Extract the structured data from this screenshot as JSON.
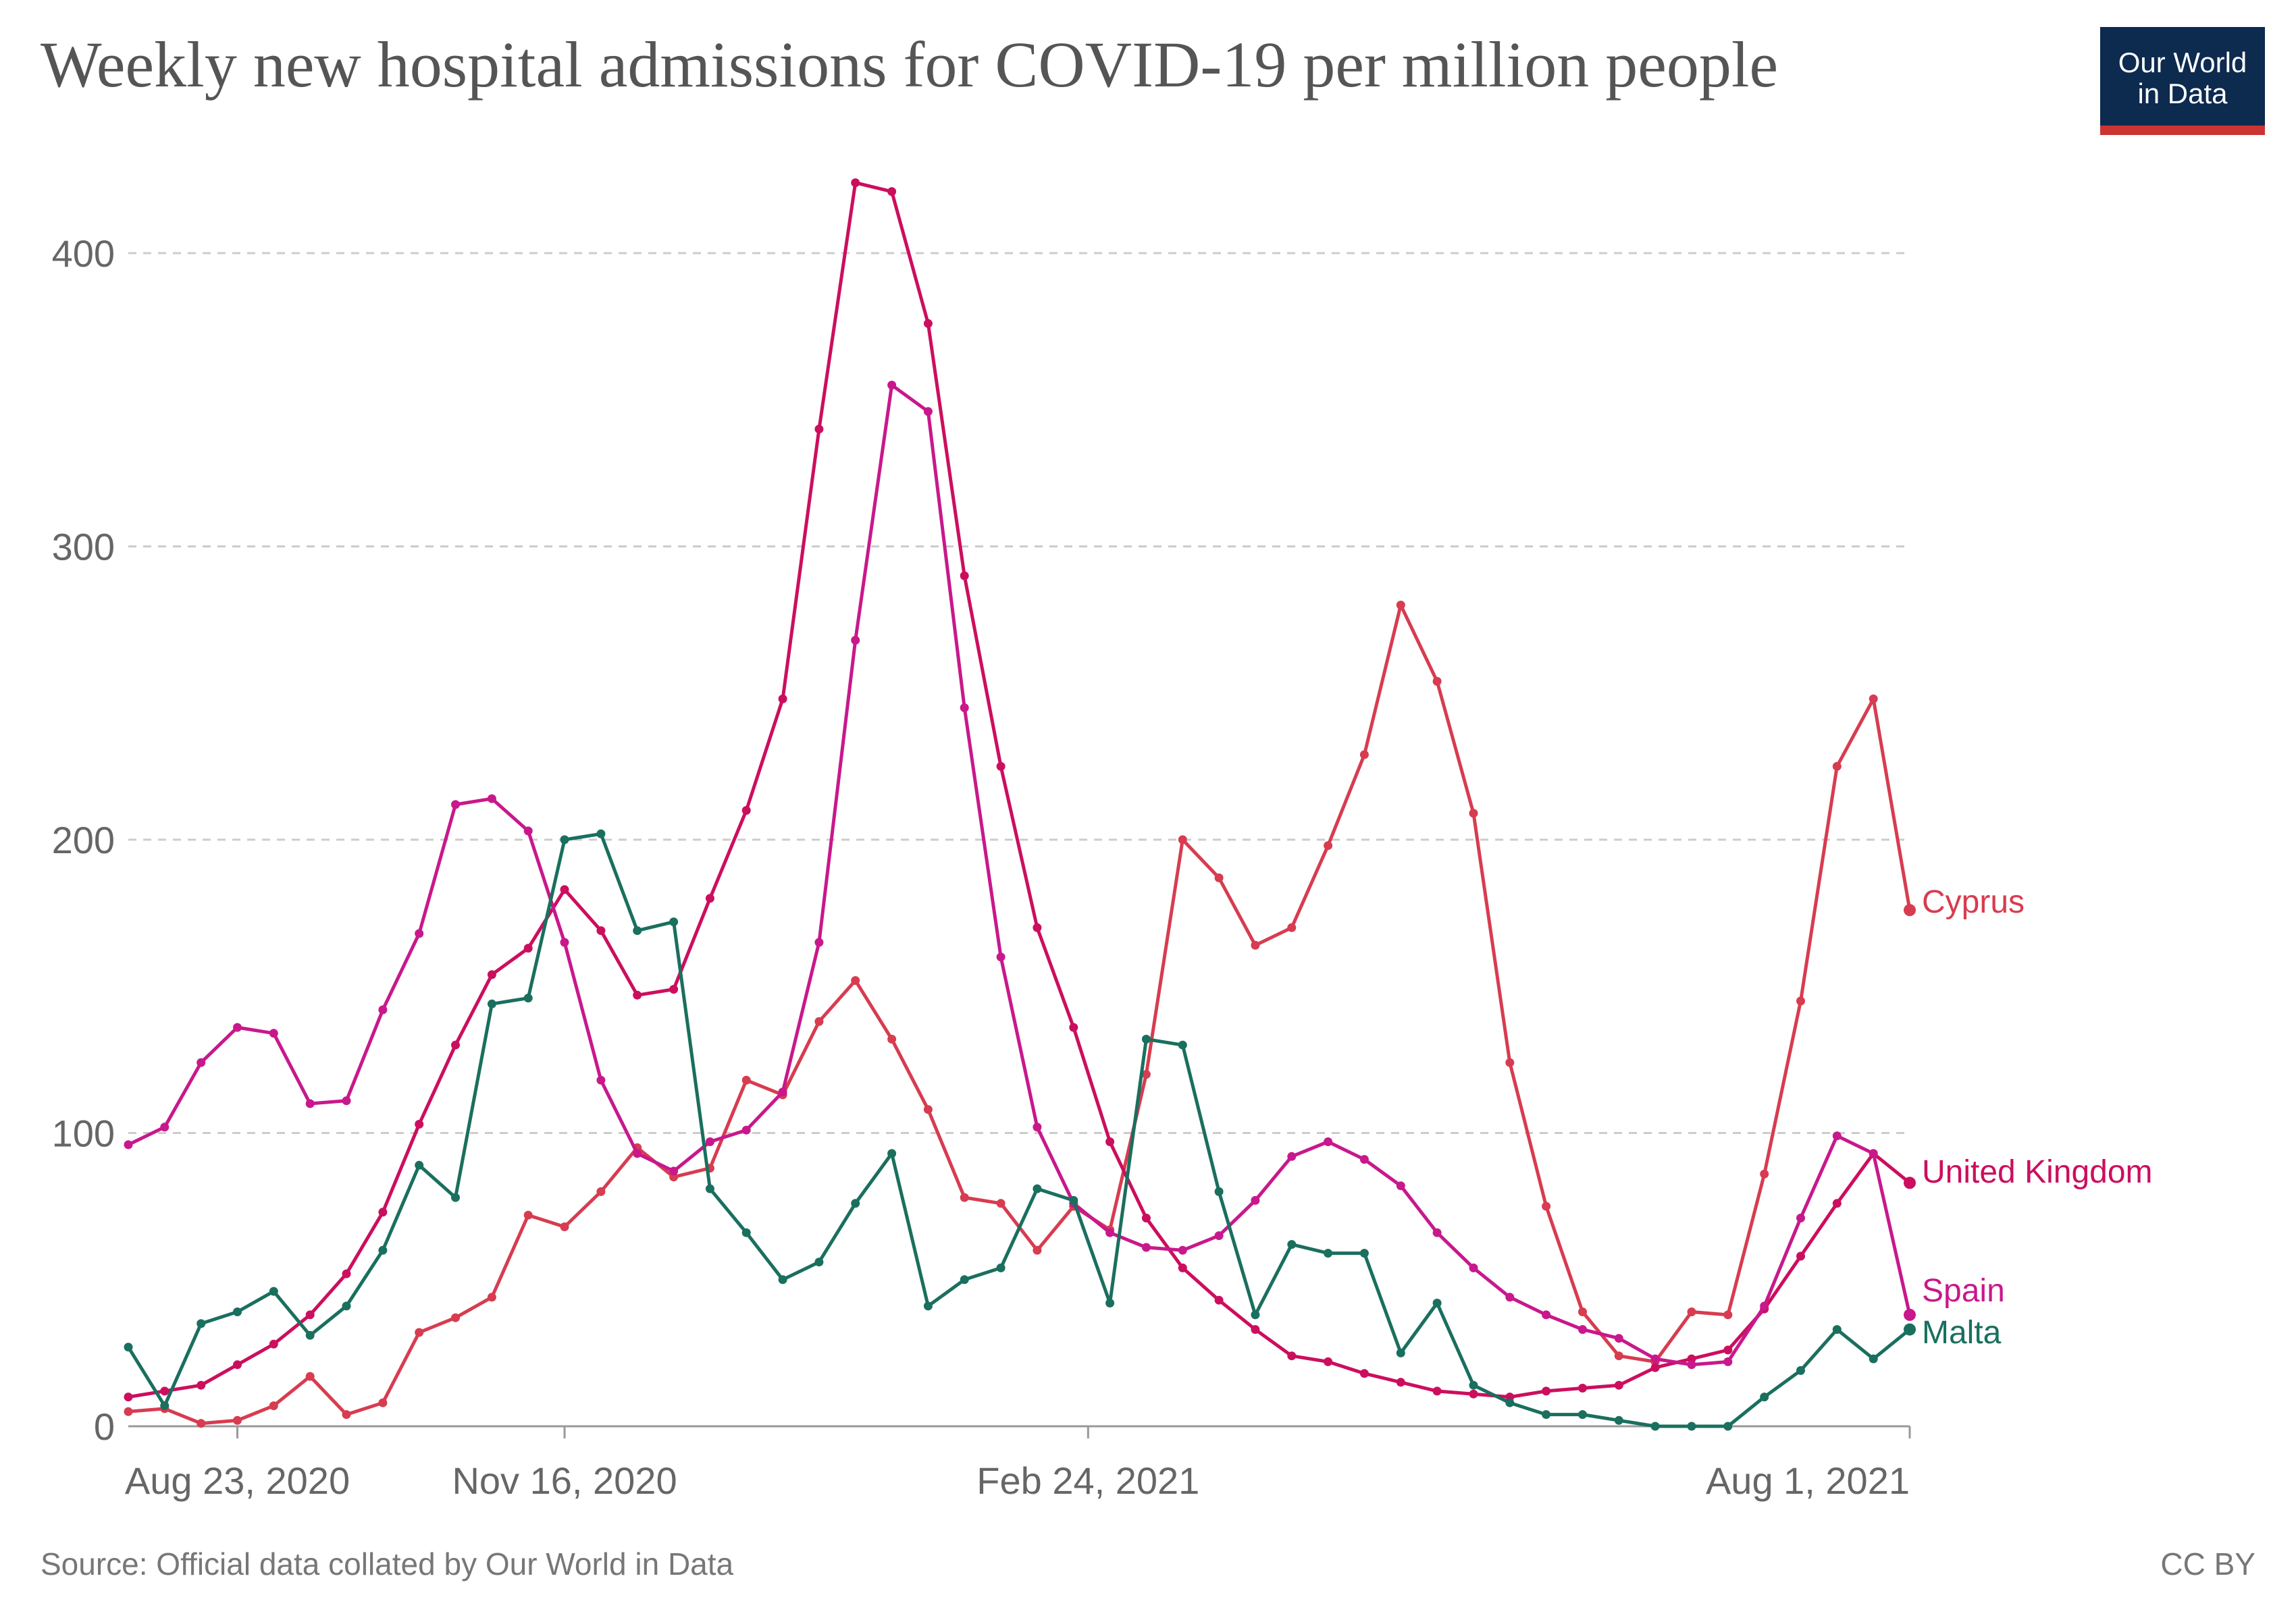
{
  "title": "Weekly new hospital admissions for COVID-19 per million people",
  "logo": {
    "line1": "Our World",
    "line2": "in Data",
    "bg_color": "#0d2a4f",
    "stripe_color": "#cc3333"
  },
  "footer": {
    "source": "Source: Official data collated by Our World in Data",
    "license": "CC BY"
  },
  "chart_data": {
    "type": "line",
    "title": "Weekly new hospital admissions for COVID-19 per million people",
    "xlabel": "",
    "ylabel": "",
    "ylim": [
      0,
      420
    ],
    "yticks": [
      0,
      100,
      200,
      300,
      400
    ],
    "grid": true,
    "legend": "inline-right",
    "x_start_date": "2020-08-02",
    "x_step_days": 7,
    "x_ticks": [
      {
        "label": "Aug 23, 2020",
        "index": 3
      },
      {
        "label": "Nov 16, 2020",
        "index": 12
      },
      {
        "label": "Feb 24, 2021",
        "index": 26.4
      },
      {
        "label": "Aug 1, 2021",
        "index": 49
      }
    ],
    "series": [
      {
        "name": "Cyprus",
        "color": "#d73c50",
        "values": [
          5,
          6,
          1,
          2,
          7,
          17,
          4,
          8,
          32,
          37,
          44,
          72,
          68,
          80,
          95,
          85,
          88,
          118,
          113,
          138,
          152,
          132,
          108,
          78,
          76,
          60,
          75,
          67,
          120,
          200,
          187,
          164,
          170,
          198,
          229,
          280,
          254,
          209,
          124,
          75,
          39,
          24,
          22,
          39,
          38,
          86,
          145,
          225,
          248,
          176
        ]
      },
      {
        "name": "United Kingdom",
        "color": "#cc0e5e",
        "values": [
          10,
          12,
          14,
          21,
          28,
          38,
          52,
          73,
          103,
          130,
          154,
          163,
          183,
          169,
          147,
          149,
          180,
          210,
          248,
          340,
          424,
          421,
          376,
          290,
          225,
          170,
          136,
          97,
          71,
          54,
          43,
          33,
          24,
          22,
          18,
          15,
          12,
          11,
          10,
          12,
          13,
          14,
          20,
          23,
          26,
          40,
          58,
          76,
          93,
          83
        ]
      },
      {
        "name": "Spain",
        "color": "#c8188c",
        "values": [
          96,
          102,
          124,
          136,
          134,
          110,
          111,
          142,
          168,
          212,
          214,
          203,
          165,
          118,
          93,
          87,
          97,
          101,
          114,
          165,
          268,
          355,
          346,
          245,
          160,
          102,
          76,
          66,
          61,
          60,
          65,
          77,
          92,
          97,
          91,
          82,
          66,
          54,
          44,
          38,
          33,
          30,
          23,
          21,
          22,
          41,
          71,
          99,
          93,
          38
        ]
      },
      {
        "name": "Malta",
        "color": "#1a6f5e",
        "values": [
          27,
          7,
          35,
          39,
          46,
          31,
          41,
          60,
          89,
          78,
          144,
          146,
          200,
          202,
          169,
          172,
          81,
          66,
          50,
          56,
          76,
          93,
          41,
          50,
          54,
          81,
          77,
          42,
          132,
          130,
          80,
          38,
          62,
          59,
          59,
          25,
          42,
          14,
          8,
          4,
          4,
          2,
          0,
          0,
          0,
          10,
          19,
          33,
          23,
          33
        ]
      }
    ]
  }
}
